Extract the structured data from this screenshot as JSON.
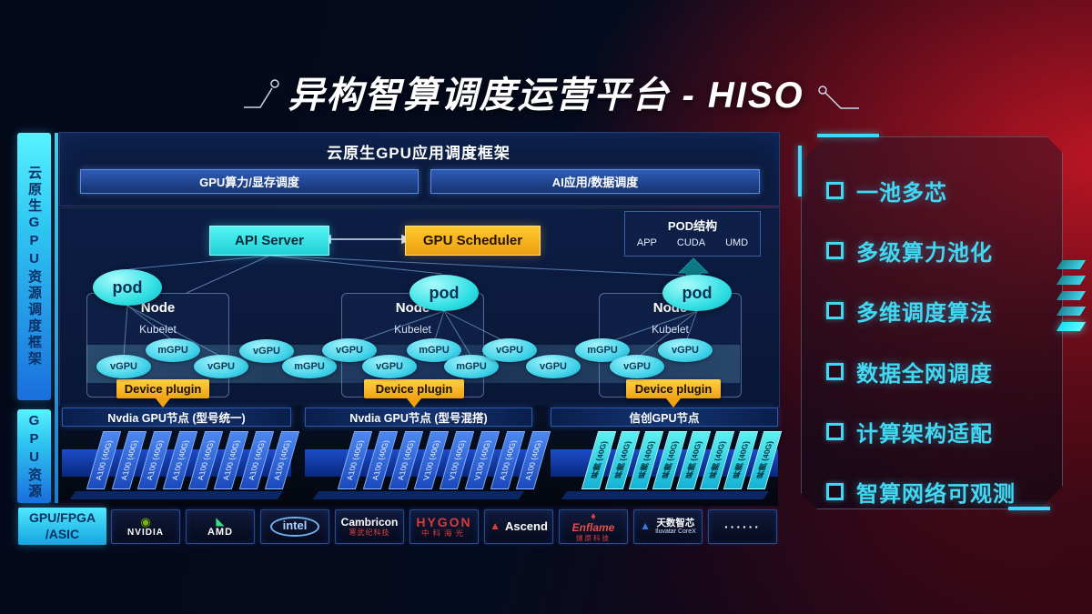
{
  "title": "异构智算调度运营平台 - HISO",
  "sidebar": {
    "top": "云原生GPU资源调度框架",
    "bottom": "GPU资源"
  },
  "framework": {
    "title": "云原生GPU应用调度框架",
    "left_bar": "GPU算力/显存调度",
    "right_bar": "AI应用/数据调度"
  },
  "control": {
    "api_server": "API Server",
    "gpu_scheduler": "GPU Scheduler"
  },
  "pod_struct": {
    "title": "POD结构",
    "items": [
      "APP",
      "CUDA",
      "UMD"
    ]
  },
  "nodes": [
    {
      "name": "Node",
      "agent": "Kubelet",
      "pod": "pod",
      "plugin": "Device plugin"
    },
    {
      "name": "Node",
      "agent": "Kubelet",
      "pod": "pod",
      "plugin": "Device plugin"
    },
    {
      "name": "Node",
      "agent": "Kubelet",
      "pod": "pod",
      "plugin": "Device plugin"
    }
  ],
  "gpu_ellipses": [
    "vGPU",
    "mGPU",
    "vGPU",
    "vGPU",
    "mGPU",
    "vGPU",
    "vGPU",
    "mGPU",
    "mGPU",
    "vGPU",
    "vGPU",
    "mGPU",
    "vGPU",
    "vGPU"
  ],
  "gpu_groups": [
    {
      "label": "Nvdia GPU节点 (型号统一)",
      "variant": "blue",
      "cards": [
        "A100 (40G)",
        "A100 (40G)",
        "A100 (40G)",
        "A100 (40G)",
        "A100 (40G)",
        "A100 (40G)",
        "A100 (40G)",
        "A100 (40G)"
      ]
    },
    {
      "label": "Nvdia GPU节点 (型号混搭)",
      "variant": "blue",
      "cards": [
        "A100 (40G)",
        "A100 (40G)",
        "A100 (40G)",
        "V100 (40G)",
        "V100 (40G)",
        "V100 (40G)",
        "A100 (40G)",
        "A100 (40G)"
      ]
    },
    {
      "label": "信创GPU节点",
      "variant": "cyan",
      "cards": [
        "昇腾 (40G)",
        "昇腾 (40G)",
        "昇腾 (40G)",
        "昇腾 (40G)",
        "昇腾 (40G)",
        "昇腾 (40G)",
        "昇腾 (40G)",
        "昇腾 (40G)"
      ]
    }
  ],
  "features": [
    "一池多芯",
    "多级算力池化",
    "多维调度算法",
    "数据全网调度",
    "计算架构适配",
    "智算网络可观测"
  ],
  "vendors": {
    "header": [
      "GPU/FPGA",
      "/ASIC"
    ],
    "logos": [
      {
        "id": "nvidia",
        "icon_glyph": "◉",
        "icon_color": "#76b900",
        "line1": "NVIDIA",
        "line1_color": "#ffffff"
      },
      {
        "id": "amd",
        "icon_glyph": "◣",
        "icon_color": "#3ddc84",
        "line1": "AMD",
        "line1_color": "#ffffff"
      },
      {
        "id": "intel",
        "line1": "intel",
        "line1_color": "#a8d4ff"
      },
      {
        "id": "cambricon",
        "line1": "Cambricon",
        "line1_color": "#ffffff",
        "sub": "寒武纪科技",
        "sub_color": "#e04040"
      },
      {
        "id": "hygon",
        "line1": "HYGON",
        "line1_color": "#d93a3a",
        "sub": "中科海光",
        "sub_color": "#d93a3a"
      },
      {
        "id": "ascend",
        "icon_glyph": "▲",
        "icon_color": "#d93a3a",
        "line1": "Ascend",
        "line1_color": "#ffffff",
        "inline": true
      },
      {
        "id": "enflame",
        "icon_glyph": "♦",
        "icon_color": "#e04040",
        "line1": "Enflame",
        "line1_color": "#e05050",
        "sub": "燧原科技",
        "sub_color": "#e04040"
      },
      {
        "id": "iluvatar",
        "icon_glyph": "▲",
        "icon_color": "#3a7ae0",
        "line1": "天数智芯",
        "line1_color": "#ffffff",
        "sub": "Iluvatar CoreX",
        "sub_color": "#cfe0ff",
        "inline": true
      },
      {
        "id": "more",
        "line1": "······",
        "line1_color": "#ffffff"
      }
    ]
  }
}
